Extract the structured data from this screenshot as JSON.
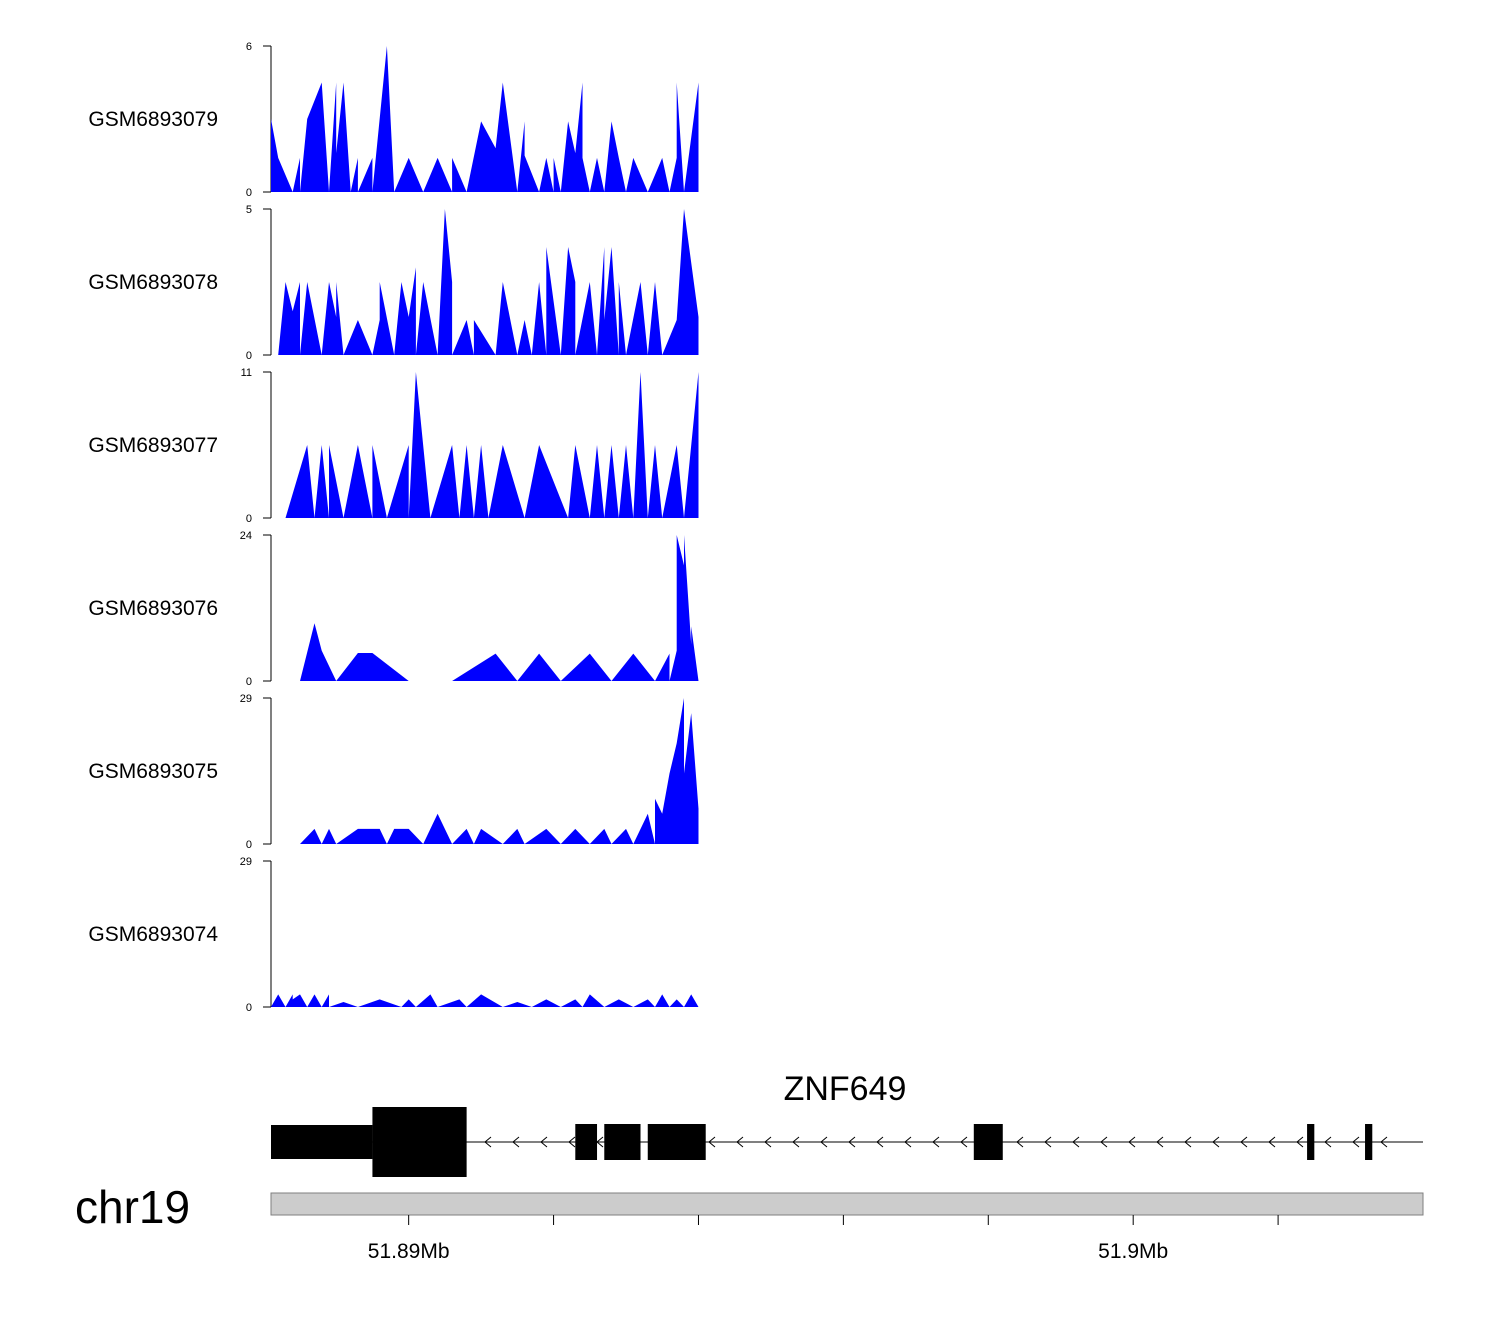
{
  "chart_data": {
    "type": "area",
    "region": {
      "chrom": "chr19",
      "start_mb": 51.8861,
      "end_mb": 51.902
    },
    "fill_color": "#0000ff",
    "tracks": [
      {
        "name": "GSM6893079",
        "ymax": 6,
        "ymin": 0,
        "x": [
          51.8861,
          51.8862,
          51.8864,
          51.8865,
          51.8865,
          51.8866,
          51.8868,
          51.8869,
          51.887,
          51.887,
          51.8871,
          51.8872,
          51.8873,
          51.8873,
          51.8875,
          51.8875,
          51.8877,
          51.8878,
          51.888,
          51.888,
          51.888,
          51.8882,
          51.8884,
          51.8886,
          51.8886,
          51.8888,
          51.889,
          51.8892,
          51.8893,
          51.8895,
          51.8896,
          51.8896,
          51.8898,
          51.8899,
          51.89,
          51.89,
          51.8901,
          51.8902,
          51.8903,
          51.8904,
          51.8904,
          51.8905,
          51.8906,
          51.8907,
          51.8908,
          51.8909,
          51.891,
          51.8911,
          51.8913,
          51.8915,
          51.8916,
          51.8917,
          51.8917,
          51.8918,
          51.892
        ],
        "y": [
          3.0,
          1.4,
          0,
          1.4,
          0,
          3.0,
          4.5,
          0,
          4.5,
          1.6,
          4.5,
          0,
          1.4,
          0,
          1.4,
          0,
          6.0,
          0,
          1.4,
          0,
          1.4,
          0,
          1.4,
          0,
          1.4,
          0,
          2.9,
          1.8,
          4.5,
          0,
          2.9,
          1.5,
          0,
          1.4,
          0,
          1.4,
          0,
          2.9,
          1.6,
          4.5,
          1.4,
          0,
          1.4,
          0,
          2.9,
          1.4,
          0,
          1.4,
          0,
          1.4,
          0,
          1.4,
          4.5,
          0,
          4.5
        ]
      },
      {
        "name": "GSM6893078",
        "ymax": 5,
        "ymin": 0,
        "x": [
          51.8862,
          51.8863,
          51.8864,
          51.8865,
          51.8865,
          51.8866,
          51.8868,
          51.8869,
          51.887,
          51.887,
          51.8871,
          51.8873,
          51.8875,
          51.8876,
          51.8876,
          51.8878,
          51.8879,
          51.888,
          51.8881,
          51.8881,
          51.8882,
          51.8884,
          51.8885,
          51.8886,
          51.8886,
          51.8888,
          51.8889,
          51.8889,
          51.8892,
          51.8893,
          51.8895,
          51.8896,
          51.8897,
          51.8898,
          51.8899,
          51.8899,
          51.8901,
          51.8902,
          51.8903,
          51.8903,
          51.8905,
          51.8906,
          51.8907,
          51.8907,
          51.8908,
          51.8909,
          51.8909,
          51.891,
          51.8912,
          51.8913,
          51.8914,
          51.8915,
          51.8917,
          51.8918,
          51.892
        ],
        "y": [
          0,
          2.5,
          1.5,
          2.5,
          0,
          2.5,
          0,
          2.5,
          1.3,
          2.5,
          0,
          1.2,
          0,
          1.2,
          2.5,
          0,
          2.5,
          1.3,
          3.0,
          0,
          2.5,
          0,
          5.0,
          2.5,
          0,
          1.2,
          0,
          1.2,
          0,
          2.5,
          0,
          1.2,
          0,
          2.5,
          0,
          3.7,
          0,
          3.7,
          2.5,
          0,
          2.5,
          0,
          3.7,
          1.2,
          3.7,
          0,
          2.5,
          0,
          2.5,
          0,
          2.5,
          0,
          1.2,
          5.0,
          1.3
        ]
      },
      {
        "name": "GSM6893077",
        "ymax": 11,
        "ymin": 0,
        "x": [
          51.8863,
          51.8866,
          51.8867,
          51.8868,
          51.8869,
          51.8869,
          51.8871,
          51.8873,
          51.8875,
          51.8875,
          51.8877,
          51.888,
          51.888,
          51.8881,
          51.8883,
          51.8886,
          51.8887,
          51.8888,
          51.8889,
          51.889,
          51.8891,
          51.8893,
          51.8896,
          51.8898,
          51.8902,
          51.8903,
          51.8905,
          51.8906,
          51.8907,
          51.8908,
          51.8909,
          51.891,
          51.8911,
          51.8912,
          51.8913,
          51.8914,
          51.8915,
          51.8917,
          51.8918,
          51.892
        ],
        "y": [
          0,
          5.5,
          0,
          5.5,
          0,
          5.5,
          0,
          5.5,
          0,
          5.5,
          0,
          5.5,
          0,
          11.0,
          0,
          5.5,
          0,
          5.5,
          0,
          5.5,
          0,
          5.5,
          0,
          5.5,
          0,
          5.5,
          0,
          5.5,
          0,
          5.5,
          0,
          5.5,
          0,
          11.0,
          0,
          5.5,
          0,
          5.5,
          0,
          11.0
        ]
      },
      {
        "name": "GSM6893076",
        "ymax": 24,
        "ymin": 0,
        "x": [
          51.8865,
          51.8867,
          51.8868,
          51.887,
          51.8873,
          51.8875,
          51.888,
          51.8886,
          51.8892,
          51.8895,
          51.8898,
          51.8901,
          51.8905,
          51.8908,
          51.8911,
          51.8914,
          51.8916,
          51.8916,
          51.8917,
          51.8917,
          51.8918,
          51.8918,
          51.8919,
          51.8919,
          51.892
        ],
        "y": [
          0,
          9.5,
          5.0,
          0,
          4.6,
          4.6,
          0,
          0,
          4.5,
          0,
          4.5,
          0,
          4.5,
          0,
          4.5,
          0,
          4.5,
          0,
          5.0,
          24.0,
          19.0,
          24.0,
          6.0,
          9.0,
          0
        ]
      },
      {
        "name": "GSM6893075",
        "ymax": 29,
        "ymin": 0,
        "x": [
          51.8865,
          51.8867,
          51.8868,
          51.8869,
          51.887,
          51.8873,
          51.8876,
          51.8877,
          51.8878,
          51.888,
          51.8882,
          51.8884,
          51.8886,
          51.8888,
          51.8889,
          51.889,
          51.8893,
          51.8895,
          51.8896,
          51.8899,
          51.8901,
          51.8903,
          51.8905,
          51.8907,
          51.8908,
          51.891,
          51.8911,
          51.8913,
          51.8914,
          51.8914,
          51.8915,
          51.8916,
          51.8917,
          51.8918,
          51.8918,
          51.8919,
          51.892
        ],
        "y": [
          0,
          3.0,
          0,
          3.0,
          0,
          3.0,
          3.0,
          0,
          3.0,
          3.0,
          0,
          6.0,
          0,
          3.0,
          0,
          3.0,
          0,
          3.0,
          0,
          3.0,
          0,
          3.0,
          0,
          3.0,
          0,
          3.0,
          0,
          6.0,
          0,
          9.0,
          6.0,
          14.0,
          20.0,
          29.0,
          14.0,
          26.0,
          7.0
        ]
      },
      {
        "name": "GSM6893074",
        "ymax": 29,
        "ymin": 0,
        "x": [
          51.8861,
          51.8862,
          51.8863,
          51.8864,
          51.8864,
          51.8865,
          51.8866,
          51.8867,
          51.8868,
          51.8869,
          51.8869,
          51.8871,
          51.8873,
          51.8876,
          51.8879,
          51.888,
          51.8881,
          51.8883,
          51.8884,
          51.8887,
          51.8888,
          51.889,
          51.8893,
          51.8895,
          51.8897,
          51.8899,
          51.8901,
          51.8903,
          51.8904,
          51.8905,
          51.8907,
          51.8909,
          51.8911,
          51.8913,
          51.8914,
          51.8915,
          51.8916,
          51.8917,
          51.8918,
          51.8919,
          51.892
        ],
        "y": [
          0,
          2.5,
          0,
          2.5,
          1.5,
          2.5,
          0,
          2.5,
          0,
          2.5,
          0,
          1.0,
          0,
          1.5,
          0,
          1.5,
          0,
          2.5,
          0,
          1.5,
          0,
          2.5,
          0,
          1.0,
          0,
          1.5,
          0,
          1.5,
          0,
          2.5,
          0,
          1.5,
          0,
          1.5,
          0,
          2.5,
          0,
          1.5,
          0,
          2.5,
          0
        ]
      }
    ],
    "gene_track": {
      "gene": "ZNF649",
      "strand": "-",
      "span": [
        51.8861,
        51.902
      ],
      "utr": [
        [
          51.8861,
          51.8875
        ]
      ],
      "exons": [
        [
          51.8875,
          51.8888
        ],
        [
          51.8903,
          51.8906
        ],
        [
          51.8907,
          51.8912
        ],
        [
          51.8913,
          51.8921
        ],
        [
          51.8917,
          51.8919
        ],
        [
          51.8958,
          51.8962
        ],
        [
          51.9004,
          51.9005
        ],
        [
          51.9012,
          51.9013
        ]
      ]
    },
    "axis": {
      "chromosome_label": "chr19",
      "ticks_mb": [
        51.888,
        51.89,
        51.892,
        51.894,
        51.896,
        51.898,
        51.9
      ],
      "tick_labels": [
        {
          "at_mb": 51.888,
          "text": "51.89Mb"
        },
        {
          "at_mb": 51.898,
          "text": "51.9Mb"
        }
      ]
    }
  }
}
